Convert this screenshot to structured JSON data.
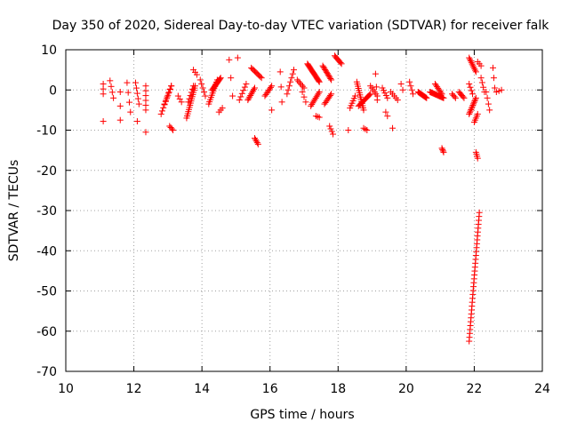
{
  "chart_data": {
    "type": "scatter",
    "title": "Day 350 of 2020, Sidereal Day-to-day VTEC variation (SDTVAR) for receiver falk",
    "xlabel": "GPS time / hours",
    "ylabel": "SDTVAR / TECUs",
    "xlim": [
      10,
      24
    ],
    "ylim": [
      -70,
      10
    ],
    "x_ticks": [
      10,
      12,
      14,
      16,
      18,
      20,
      22,
      24
    ],
    "y_ticks": [
      -70,
      -60,
      -50,
      -40,
      -30,
      -20,
      -10,
      0,
      10
    ],
    "grid": true,
    "marker": "+",
    "marker_color": "#ff0000",
    "series": [
      {
        "name": "SDTVAR",
        "clusters": [
          {
            "x0": 11.1,
            "x1": 11.1,
            "y0": 1.5,
            "y1": -1.0,
            "n": 3
          },
          {
            "x0": 11.1,
            "x1": 11.1,
            "y0": -7.8,
            "y1": -7.8,
            "n": 1
          },
          {
            "x0": 11.3,
            "x1": 11.4,
            "y0": 2.3,
            "y1": -2.0,
            "n": 4
          },
          {
            "x0": 11.6,
            "x1": 11.6,
            "y0": -0.5,
            "y1": -7.5,
            "n": 3
          },
          {
            "x0": 11.8,
            "x1": 11.9,
            "y0": 1.8,
            "y1": -5.5,
            "n": 4
          },
          {
            "x0": 12.05,
            "x1": 12.15,
            "y0": 1.8,
            "y1": -3.5,
            "n": 5
          },
          {
            "x0": 12.1,
            "x1": 12.1,
            "y0": -7.8,
            "y1": -7.8,
            "n": 1
          },
          {
            "x0": 12.35,
            "x1": 12.35,
            "y0": 1.0,
            "y1": -5.0,
            "n": 6
          },
          {
            "x0": 12.35,
            "x1": 12.35,
            "y0": -10.5,
            "y1": -10.5,
            "n": 1
          },
          {
            "x0": 12.8,
            "x1": 13.1,
            "y0": -6.0,
            "y1": 1.0,
            "n": 10
          },
          {
            "x0": 12.9,
            "x1": 13.1,
            "y0": -3.5,
            "y1": 1.0,
            "n": 6
          },
          {
            "x0": 13.05,
            "x1": 13.15,
            "y0": -9.0,
            "y1": -10.0,
            "n": 4
          },
          {
            "x0": 13.3,
            "x1": 13.4,
            "y0": -1.5,
            "y1": -3.0,
            "n": 3
          },
          {
            "x0": 13.55,
            "x1": 13.8,
            "y0": -7.0,
            "y1": 1.0,
            "n": 16
          },
          {
            "x0": 13.6,
            "x1": 13.75,
            "y0": -3.0,
            "y1": 1.0,
            "n": 6
          },
          {
            "x0": 13.75,
            "x1": 13.85,
            "y0": 5.0,
            "y1": 3.8,
            "n": 3
          },
          {
            "x0": 13.95,
            "x1": 14.1,
            "y0": 2.5,
            "y1": -1.5,
            "n": 5
          },
          {
            "x0": 14.2,
            "x1": 14.45,
            "y0": -3.5,
            "y1": 2.5,
            "n": 12
          },
          {
            "x0": 14.3,
            "x1": 14.55,
            "y0": 0.0,
            "y1": 3.0,
            "n": 14
          },
          {
            "x0": 14.5,
            "x1": 14.6,
            "y0": -5.5,
            "y1": -4.5,
            "n": 3
          },
          {
            "x0": 14.8,
            "x1": 14.9,
            "y0": 7.5,
            "y1": -1.5,
            "n": 3
          },
          {
            "x0": 15.05,
            "x1": 15.05,
            "y0": 8.0,
            "y1": 8.0,
            "n": 1
          },
          {
            "x0": 15.1,
            "x1": 15.3,
            "y0": -2.5,
            "y1": 1.5,
            "n": 6
          },
          {
            "x0": 15.35,
            "x1": 15.55,
            "y0": -2.5,
            "y1": 0.5,
            "n": 9
          },
          {
            "x0": 15.45,
            "x1": 15.75,
            "y0": 5.5,
            "y1": 3.0,
            "n": 10
          },
          {
            "x0": 15.55,
            "x1": 15.65,
            "y0": -12.0,
            "y1": -13.5,
            "n": 5
          },
          {
            "x0": 15.85,
            "x1": 16.05,
            "y0": -1.5,
            "y1": 1.0,
            "n": 8
          },
          {
            "x0": 16.05,
            "x1": 16.05,
            "y0": -5.0,
            "y1": -5.0,
            "n": 1
          },
          {
            "x0": 16.3,
            "x1": 16.35,
            "y0": 4.5,
            "y1": -3.0,
            "n": 3
          },
          {
            "x0": 16.5,
            "x1": 16.7,
            "y0": -1.0,
            "y1": 5.0,
            "n": 7
          },
          {
            "x0": 16.8,
            "x1": 17.0,
            "y0": 2.5,
            "y1": 0.5,
            "n": 6
          },
          {
            "x0": 16.95,
            "x1": 17.05,
            "y0": -0.5,
            "y1": -3.0,
            "n": 3
          },
          {
            "x0": 17.1,
            "x1": 17.45,
            "y0": 6.5,
            "y1": 2.0,
            "n": 20
          },
          {
            "x0": 17.2,
            "x1": 17.45,
            "y0": -4.0,
            "y1": -0.5,
            "n": 10
          },
          {
            "x0": 17.35,
            "x1": 17.45,
            "y0": -6.5,
            "y1": -6.8,
            "n": 3
          },
          {
            "x0": 17.55,
            "x1": 17.8,
            "y0": 6.0,
            "y1": 2.5,
            "n": 12
          },
          {
            "x0": 17.6,
            "x1": 17.8,
            "y0": -3.5,
            "y1": -1.0,
            "n": 8
          },
          {
            "x0": 17.75,
            "x1": 17.85,
            "y0": -9.0,
            "y1": -11.0,
            "n": 4
          },
          {
            "x0": 17.9,
            "x1": 18.1,
            "y0": 8.5,
            "y1": 6.5,
            "n": 8
          },
          {
            "x0": 18.3,
            "x1": 18.3,
            "y0": -10.0,
            "y1": -10.0,
            "n": 1
          },
          {
            "x0": 18.35,
            "x1": 18.5,
            "y0": -4.5,
            "y1": -1.5,
            "n": 6
          },
          {
            "x0": 18.55,
            "x1": 18.75,
            "y0": 2.0,
            "y1": -5.0,
            "n": 14
          },
          {
            "x0": 18.6,
            "x1": 18.95,
            "y0": -4.0,
            "y1": -1.0,
            "n": 14
          },
          {
            "x0": 18.75,
            "x1": 18.85,
            "y0": -9.5,
            "y1": -10.0,
            "n": 3
          },
          {
            "x0": 18.95,
            "x1": 19.15,
            "y0": 1.0,
            "y1": -1.5,
            "n": 6
          },
          {
            "x0": 19.1,
            "x1": 19.15,
            "y0": 4.0,
            "y1": -2.5,
            "n": 3
          },
          {
            "x0": 19.3,
            "x1": 19.45,
            "y0": 0.5,
            "y1": -2.0,
            "n": 5
          },
          {
            "x0": 19.4,
            "x1": 19.45,
            "y0": -5.5,
            "y1": -6.5,
            "n": 2
          },
          {
            "x0": 19.6,
            "x1": 19.65,
            "y0": -9.5,
            "y1": -9.5,
            "n": 1
          },
          {
            "x0": 19.55,
            "x1": 19.75,
            "y0": -0.5,
            "y1": -2.5,
            "n": 5
          },
          {
            "x0": 19.85,
            "x1": 19.9,
            "y0": 1.5,
            "y1": 0.0,
            "n": 2
          },
          {
            "x0": 20.1,
            "x1": 20.2,
            "y0": 2.0,
            "y1": -1.0,
            "n": 4
          },
          {
            "x0": 20.35,
            "x1": 20.6,
            "y0": -0.5,
            "y1": -2.0,
            "n": 12
          },
          {
            "x0": 20.7,
            "x1": 21.1,
            "y0": -0.5,
            "y1": -2.0,
            "n": 18
          },
          {
            "x0": 20.85,
            "x1": 21.05,
            "y0": 1.5,
            "y1": -1.0,
            "n": 8
          },
          {
            "x0": 21.05,
            "x1": 21.1,
            "y0": -14.5,
            "y1": -15.5,
            "n": 4
          },
          {
            "x0": 21.35,
            "x1": 21.45,
            "y0": -1.0,
            "y1": -2.0,
            "n": 4
          },
          {
            "x0": 21.55,
            "x1": 21.7,
            "y0": -0.5,
            "y1": -2.0,
            "n": 6
          },
          {
            "x0": 21.85,
            "x1": 22.05,
            "y0": 8.0,
            "y1": 4.5,
            "n": 10
          },
          {
            "x0": 21.85,
            "x1": 21.95,
            "y0": 1.5,
            "y1": -1.0,
            "n": 4
          },
          {
            "x0": 21.85,
            "x1": 22.05,
            "y0": -6.0,
            "y1": -2.0,
            "n": 12
          },
          {
            "x0": 22.0,
            "x1": 22.1,
            "y0": -8.0,
            "y1": -6.0,
            "n": 5
          },
          {
            "x0": 22.05,
            "x1": 22.1,
            "y0": -15.5,
            "y1": -17.0,
            "n": 4
          },
          {
            "x0": 21.85,
            "x1": 22.15,
            "y0": -62.5,
            "y1": -30.5,
            "n": 34
          },
          {
            "x0": 22.1,
            "x1": 22.2,
            "y0": 7.0,
            "y1": 6.0,
            "n": 3
          },
          {
            "x0": 22.2,
            "x1": 22.3,
            "y0": 3.0,
            "y1": -0.5,
            "n": 4
          },
          {
            "x0": 22.35,
            "x1": 22.45,
            "y0": -0.5,
            "y1": -5.0,
            "n": 4
          },
          {
            "x0": 22.55,
            "x1": 22.6,
            "y0": 5.5,
            "y1": 0.5,
            "n": 3
          },
          {
            "x0": 22.65,
            "x1": 22.8,
            "y0": -0.5,
            "y1": 0.0,
            "n": 3
          }
        ]
      }
    ]
  }
}
